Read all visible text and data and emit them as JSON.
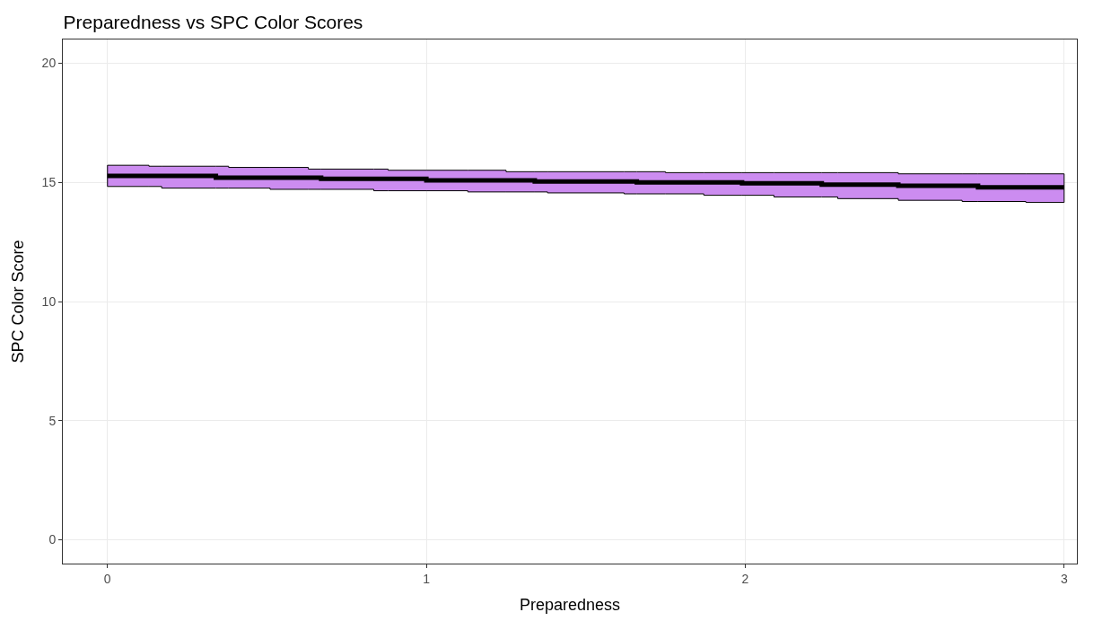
{
  "chart_data": {
    "type": "step",
    "title": "Preparedness vs SPC Color Scores",
    "xlabel": "Preparedness",
    "ylabel": "SPC Color Score",
    "xlim": [
      -0.14,
      3.04
    ],
    "xticks": [
      0,
      1,
      2,
      3
    ],
    "ylim": [
      -1,
      21
    ],
    "yticks": [
      0,
      5,
      10,
      15,
      20
    ],
    "grid": true,
    "series": [
      {
        "color": "#000000",
        "x": [
          0,
          0.13,
          0.17,
          0.34,
          0.38,
          0.51,
          0.63,
          0.67,
          0.835,
          0.88,
          1.0,
          1.13,
          1.25,
          1.34,
          1.38,
          1.62,
          1.66,
          1.75,
          1.87,
          1.99,
          2.09,
          2.24,
          2.29,
          2.48,
          2.68,
          2.73,
          2.88,
          3.0
        ],
        "values": [
          15.27,
          15.27,
          15.27,
          15.2,
          15.2,
          15.2,
          15.2,
          15.15,
          15.15,
          15.15,
          15.09,
          15.09,
          15.09,
          15.04,
          15.04,
          15.04,
          15.0,
          15.0,
          15.0,
          14.96,
          14.96,
          14.91,
          14.91,
          14.86,
          14.86,
          14.79,
          14.79,
          14.79
        ],
        "upper": [
          15.72,
          15.68,
          15.68,
          15.68,
          15.63,
          15.63,
          15.56,
          15.56,
          15.56,
          15.51,
          15.51,
          15.51,
          15.45,
          15.45,
          15.45,
          15.45,
          15.45,
          15.41,
          15.41,
          15.41,
          15.41,
          15.41,
          15.41,
          15.36,
          15.36,
          15.36,
          15.36,
          15.36
        ],
        "lower": [
          14.83,
          14.83,
          14.76,
          14.76,
          14.76,
          14.71,
          14.71,
          14.71,
          14.65,
          14.65,
          14.65,
          14.6,
          14.6,
          14.6,
          14.56,
          14.52,
          14.52,
          14.52,
          14.46,
          14.46,
          14.39,
          14.39,
          14.32,
          14.25,
          14.2,
          14.2,
          14.16,
          14.16
        ]
      }
    ]
  }
}
